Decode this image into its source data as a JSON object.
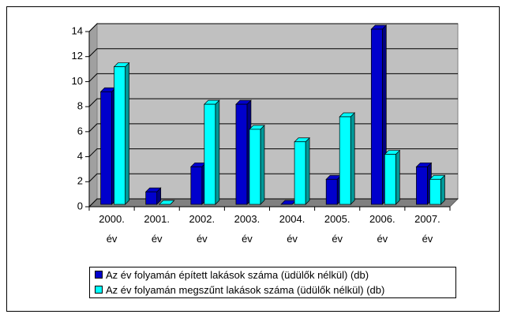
{
  "chart_data": {
    "type": "bar3d",
    "categories": [
      "2000. év",
      "2001. év",
      "2002. év",
      "2003. év",
      "2004. év",
      "2005. év",
      "2006. év",
      "2007. év"
    ],
    "series": [
      {
        "name": "Az év folyamán épített lakások száma (üdülők nélkül) (db)",
        "color": "#0000cc",
        "side": "#000080",
        "values": [
          9,
          1,
          3,
          8,
          0,
          2,
          14,
          3
        ]
      },
      {
        "name": "Az év folyamán megszűnt lakások száma (üdülők nélkül) (db)",
        "color": "#00ffff",
        "side": "#009999",
        "values": [
          11,
          0,
          8,
          6,
          5,
          7,
          4,
          2
        ]
      }
    ],
    "ylim": [
      0,
      14
    ],
    "yticks": [
      0,
      2,
      4,
      6,
      8,
      10,
      12,
      14
    ],
    "grid": true
  }
}
